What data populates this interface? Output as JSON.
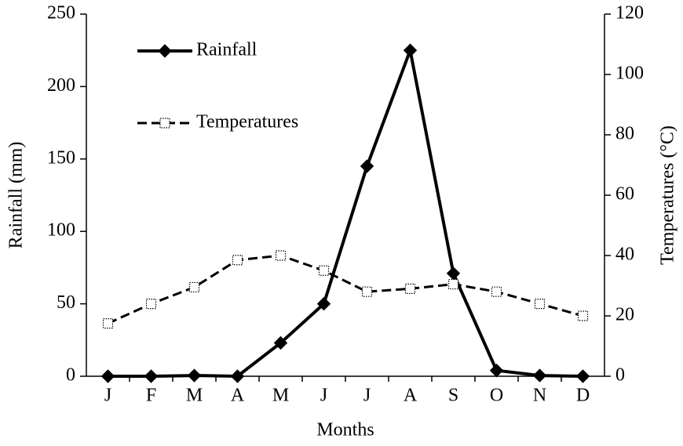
{
  "chart_data": {
    "type": "line",
    "x_label": "Months",
    "y_label": "Rainfall (mm)",
    "y2_label": "Temperatures  (°C)",
    "categories": [
      "J",
      "F",
      "M",
      "A",
      "M",
      "J",
      "J",
      "A",
      "S",
      "O",
      "N",
      "D"
    ],
    "series": [
      {
        "name": "Rainfall",
        "color": "#000000",
        "marker": "diamond",
        "dash": "solid",
        "values": [
          0,
          0,
          0.5,
          0,
          23,
          50,
          145,
          225,
          71,
          4,
          0.5,
          0
        ]
      },
      {
        "name": "Temperatures",
        "color": "#000000",
        "marker": "square-open",
        "dash": "dashed",
        "axis": "y2",
        "values": [
          17.5,
          24,
          29.5,
          38.5,
          40,
          35,
          28,
          29,
          30.5,
          28,
          24,
          20
        ]
      }
    ],
    "ylim": [
      0,
      250
    ],
    "yticks": [
      0,
      50,
      100,
      150,
      200,
      250
    ],
    "y2lim": [
      0,
      120
    ],
    "y2ticks": [
      0,
      20,
      40,
      60,
      80,
      100,
      120
    ],
    "grid": false,
    "legend": "upper left"
  }
}
